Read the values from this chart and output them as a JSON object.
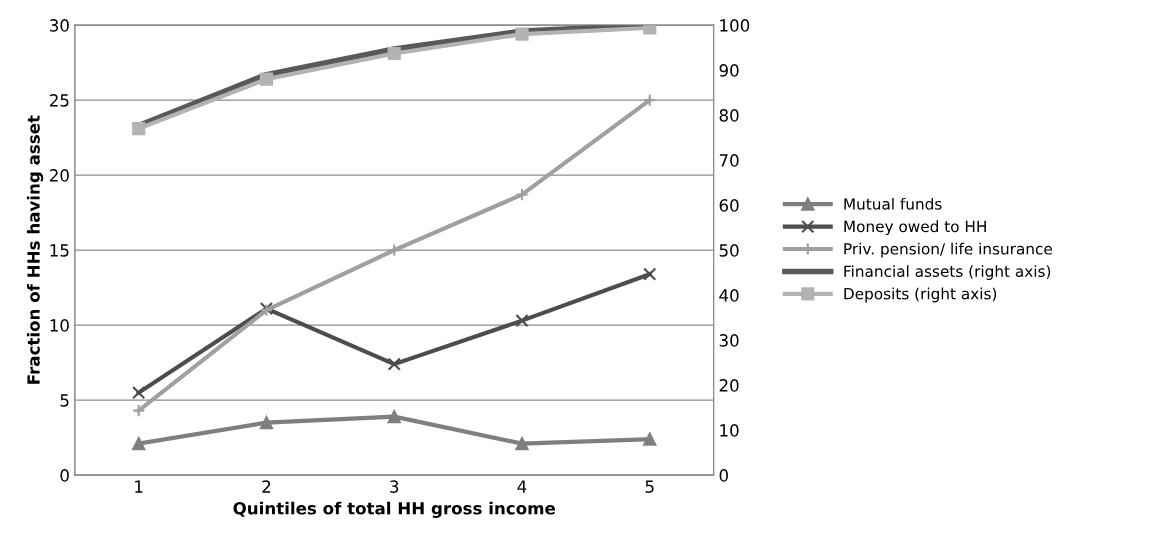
{
  "chart_data": {
    "type": "line",
    "xlabel": "Quintiles of total HH gross income",
    "ylabel": "Fraction of HHs having asset",
    "categories": [
      "1",
      "2",
      "3",
      "4",
      "5"
    ],
    "ylim": [
      0,
      30
    ],
    "yticks": [
      0,
      5,
      10,
      15,
      20,
      25,
      30
    ],
    "y2lim": [
      0,
      100
    ],
    "y2ticks": [
      0,
      10,
      20,
      30,
      40,
      50,
      60,
      70,
      80,
      90,
      100
    ],
    "grid": "y",
    "legend": "right",
    "series": [
      {
        "name": "Mutual funds",
        "color": "#7f7f7f",
        "marker": "triangle",
        "values": [
          2.1,
          3.5,
          3.9,
          2.1,
          2.4
        ]
      },
      {
        "name": "Money owed to HH",
        "color": "#4d4d4d",
        "marker": "cross",
        "values": [
          5.5,
          11.1,
          7.4,
          10.3,
          13.4
        ]
      },
      {
        "name": "Priv. pension/ life insurance",
        "color": "#a0a0a0",
        "marker": "plus",
        "values": [
          4.3,
          11.0,
          15.0,
          18.7,
          25.0
        ]
      },
      {
        "name": "Financial assets (right axis)",
        "color": "#595959",
        "marker": "none",
        "axis": "y2",
        "values": [
          77.7,
          89,
          94.7,
          98.7,
          100
        ]
      },
      {
        "name": "Deposits (right axis)",
        "color": "#b3b3b3",
        "marker": "square",
        "axis": "y2",
        "values": [
          77,
          88,
          93.7,
          98,
          99.4
        ]
      }
    ]
  }
}
